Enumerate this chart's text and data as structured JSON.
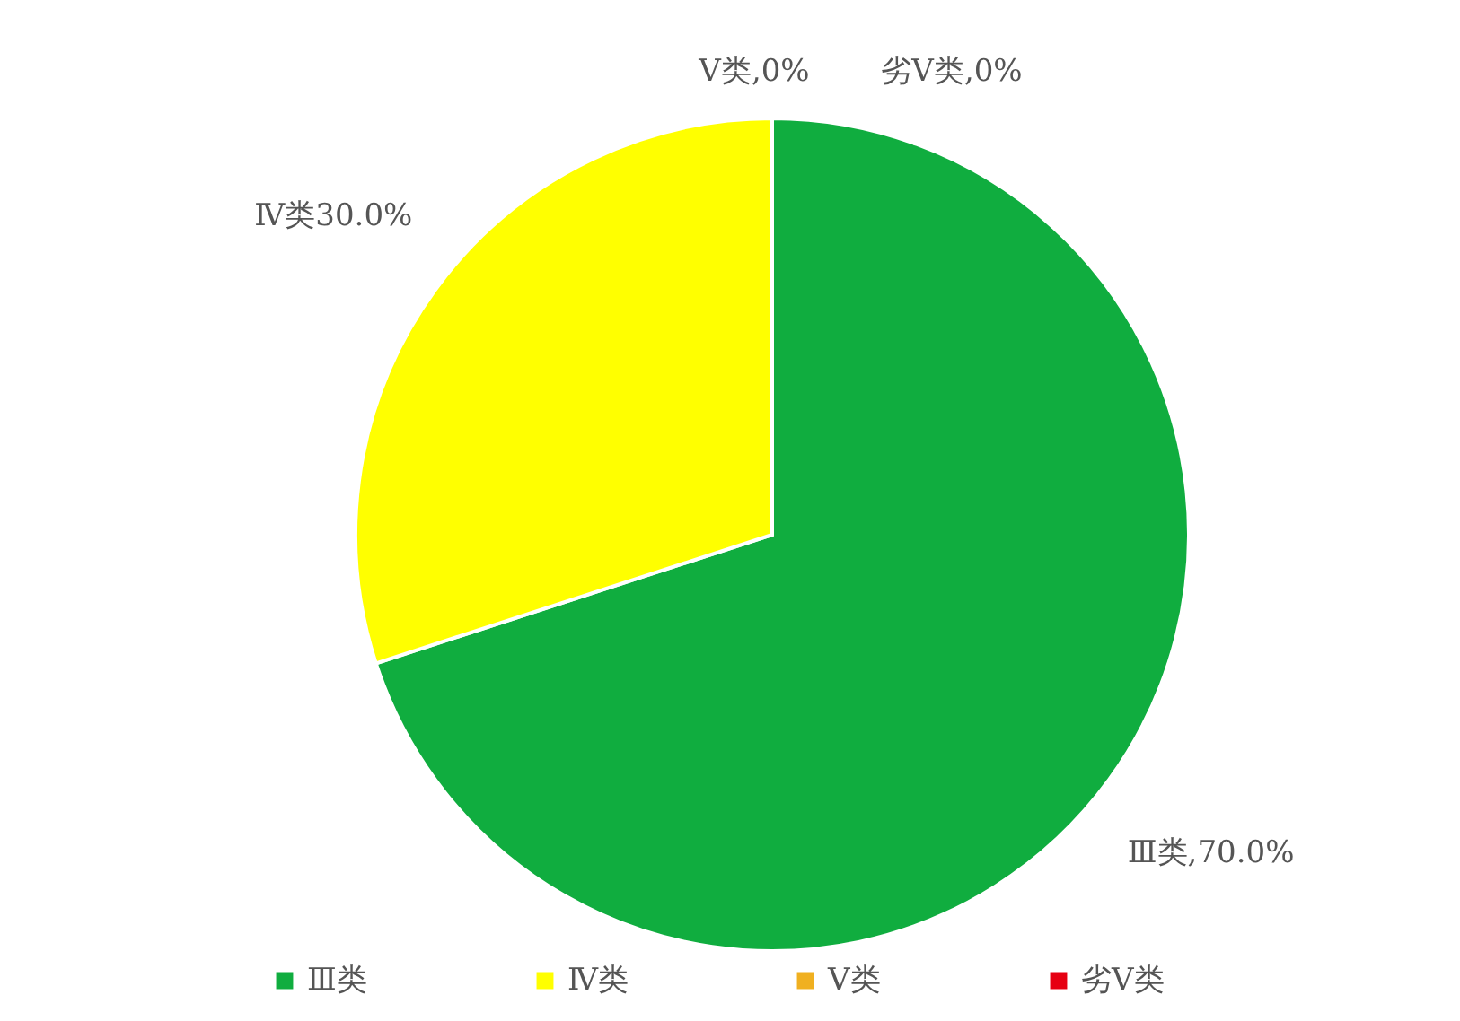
{
  "chart_data": {
    "type": "pie",
    "categories": [
      "Ⅲ类",
      "Ⅳ类",
      "Ⅴ类",
      "劣Ⅴ类"
    ],
    "values": [
      70,
      30,
      0,
      0
    ],
    "colors": [
      "#10ad3f",
      "#ffff00",
      "#f0b020",
      "#e60012"
    ],
    "value_labels": [
      "Ⅲ类,70.0%",
      "Ⅳ类30.0%",
      "Ⅴ类,0%",
      "劣Ⅴ类,0%"
    ],
    "legend": "bottom"
  }
}
